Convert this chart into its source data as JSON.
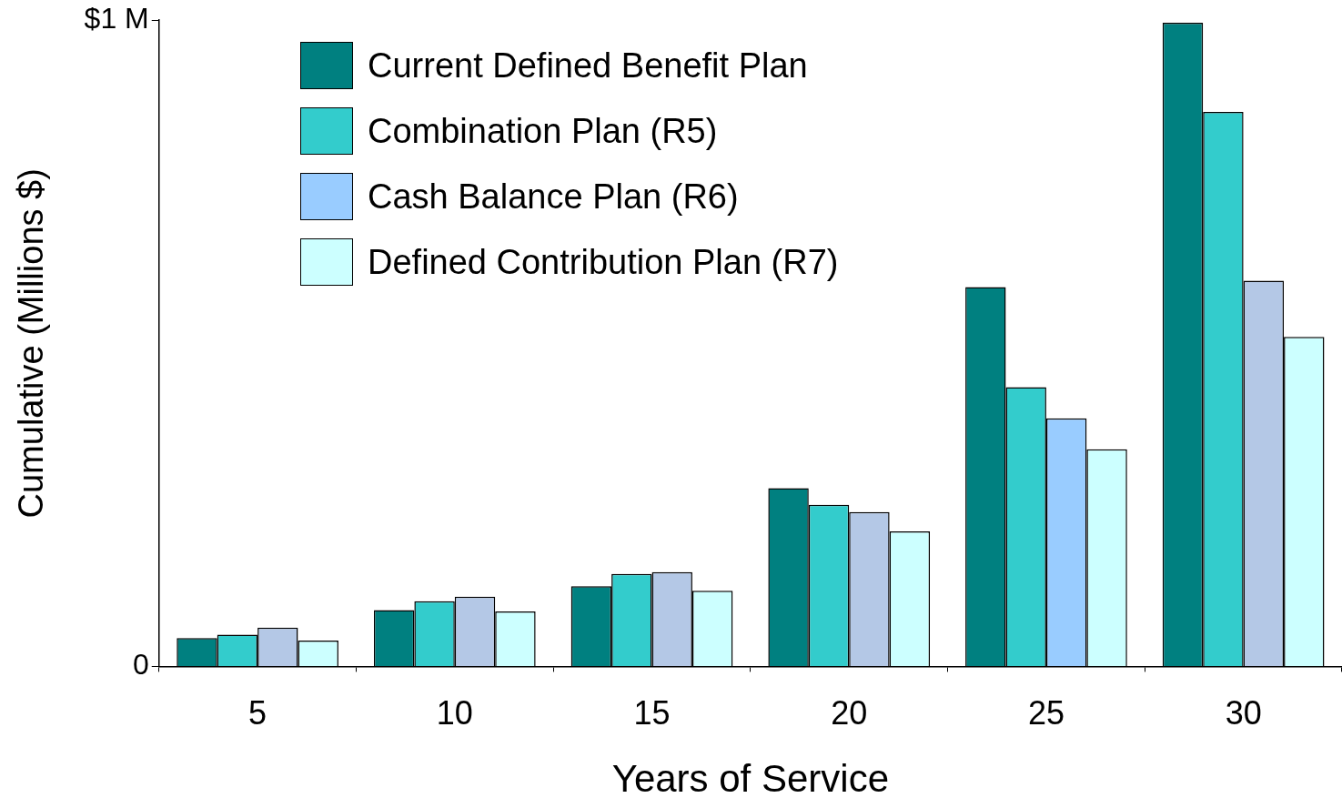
{
  "chart_data": {
    "type": "bar",
    "xlabel": "Years of Service",
    "ylabel": "Cumulative (Millions $)",
    "categories": [
      "5",
      "10",
      "15",
      "20",
      "25",
      "30"
    ],
    "series": [
      {
        "name": "Current Defined Benefit Plan",
        "color": "#008080",
        "values": [
          0.044,
          0.087,
          0.124,
          0.276,
          0.587,
          0.996
        ]
      },
      {
        "name": "Combination Plan (R5)",
        "color": "#33cccc",
        "values": [
          0.049,
          0.101,
          0.143,
          0.25,
          0.432,
          0.858
        ]
      },
      {
        "name": "Cash Balance Plan (R6)",
        "color": "#99ccff",
        "colors": [
          "#b4c8e6",
          "#b4c8e6",
          "#b4c8e6",
          "#b4c8e6",
          "#99ccff",
          "#b4c8e6"
        ],
        "values": [
          0.06,
          0.108,
          0.146,
          0.239,
          0.384,
          0.597
        ]
      },
      {
        "name": "Defined Contribution Plan (R7)",
        "color": "#ccffff",
        "values": [
          0.04,
          0.085,
          0.117,
          0.209,
          0.336,
          0.51
        ]
      }
    ],
    "ylim": [
      0,
      1
    ],
    "yticks": [
      0,
      {
        "value": 1,
        "label": "$1 M"
      }
    ],
    "grid": false,
    "legend": "top left"
  }
}
